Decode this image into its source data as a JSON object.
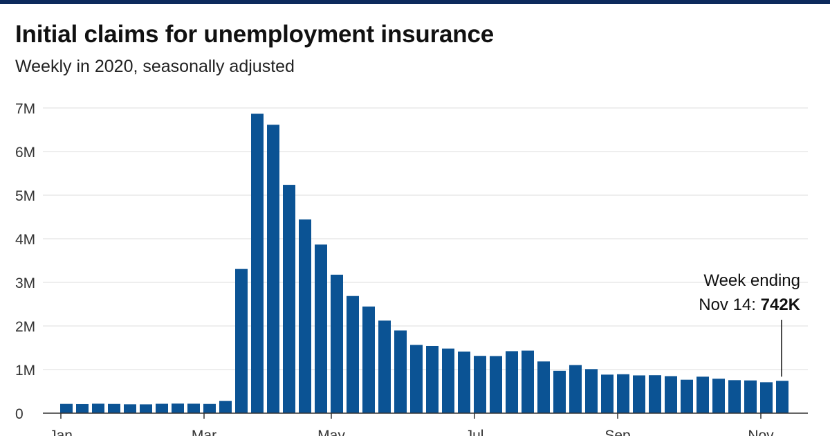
{
  "header": {
    "title": "Initial claims for unemployment insurance",
    "subtitle": "Weekly in 2020, seasonally adjusted"
  },
  "colors": {
    "bar": "#0b5394",
    "top_rule": "#0d2a5c",
    "grid": "#dddddd",
    "axis": "#333333"
  },
  "chart_data": {
    "type": "bar",
    "title": "Initial claims for unemployment insurance",
    "subtitle": "Weekly in 2020, seasonally adjusted",
    "xlabel": "",
    "ylabel": "",
    "ylim": [
      0,
      7000000
    ],
    "yticks": [
      0,
      1000000,
      2000000,
      3000000,
      4000000,
      5000000,
      6000000,
      7000000
    ],
    "ytick_labels": [
      "0",
      "1M",
      "2M",
      "3M",
      "4M",
      "5M",
      "6M",
      "7M"
    ],
    "xtick_labels": [
      "Jan",
      "Mar",
      "May",
      "Jul",
      "Sep",
      "Nov"
    ],
    "xtick_week_index": [
      0,
      9,
      17,
      26,
      35,
      44
    ],
    "grid": true,
    "values": [
      212000,
      207000,
      217000,
      211000,
      202000,
      201000,
      215000,
      220000,
      217000,
      211000,
      282000,
      3307000,
      6867000,
      6615000,
      5237000,
      4442000,
      3867000,
      3176000,
      2687000,
      2446000,
      2123000,
      1897000,
      1566000,
      1540000,
      1482000,
      1413000,
      1314000,
      1310000,
      1422000,
      1435000,
      1186000,
      971000,
      1104000,
      1011000,
      884000,
      893000,
      866000,
      870000,
      849000,
      767000,
      837000,
      790000,
      757000,
      751000,
      709000,
      742000
    ],
    "annotation": {
      "line1": "Week ending",
      "line2_prefix": "Nov 14: ",
      "line2_value": "742K",
      "bar_index": 45
    }
  }
}
